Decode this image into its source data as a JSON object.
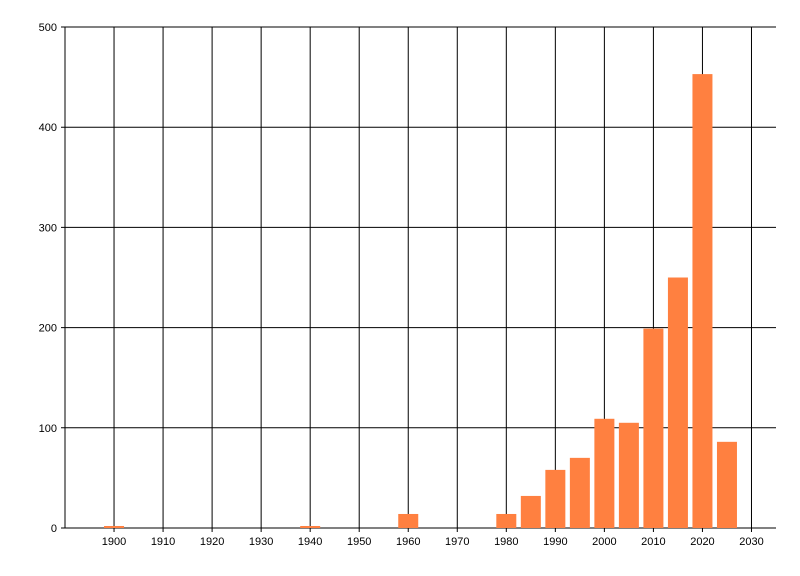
{
  "chart_data": {
    "type": "bar",
    "title": "",
    "xlabel": "",
    "ylabel": "",
    "x": [
      1900,
      1940,
      1960,
      1980,
      1985,
      1990,
      1995,
      2000,
      2005,
      2010,
      2015,
      2020,
      2025
    ],
    "values": [
      2,
      2,
      14,
      14,
      32,
      58,
      70,
      109,
      105,
      199,
      250,
      453,
      86
    ],
    "xlim": [
      1890,
      2035
    ],
    "ylim": [
      0,
      500
    ],
    "xticks": [
      1900,
      1910,
      1920,
      1930,
      1940,
      1950,
      1960,
      1970,
      1980,
      1990,
      2000,
      2010,
      2020,
      2030
    ],
    "yticks": [
      0,
      100,
      200,
      300,
      400,
      500
    ],
    "grid": true,
    "bar_color": "#FF8040"
  }
}
